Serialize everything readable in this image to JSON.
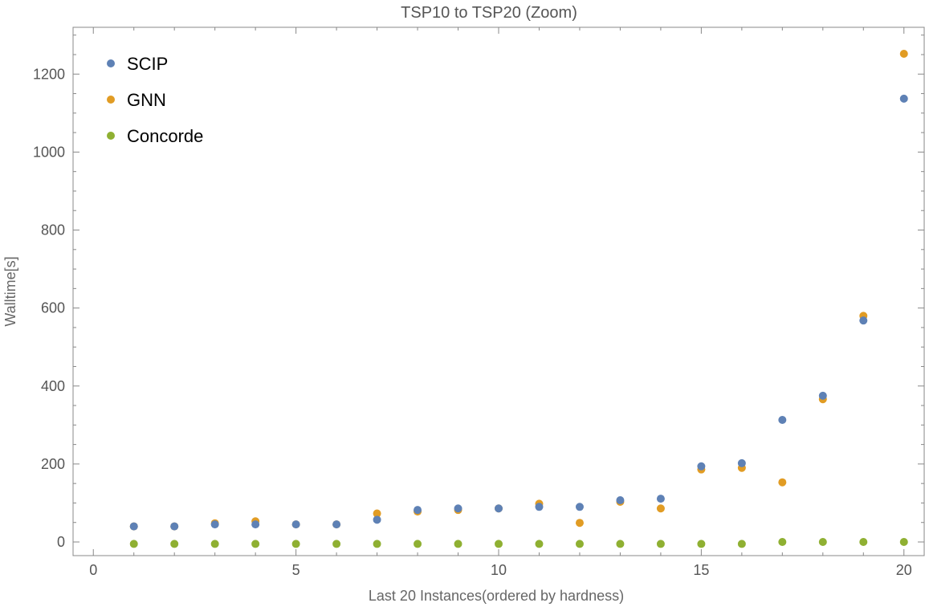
{
  "chart_data": {
    "type": "scatter",
    "title": "TSP10 to TSP20 (Zoom)",
    "xlabel": "Last 20 Instances(ordered by hardness)",
    "ylabel": "Walltime[s]",
    "xlim": [
      -0.5,
      20.5
    ],
    "ylim": [
      -35,
      1320
    ],
    "x_major_ticks": [
      0,
      5,
      10,
      15,
      20
    ],
    "x_tick_labels": [
      "0",
      "5",
      "10",
      "15",
      "20"
    ],
    "y_major_ticks": [
      0,
      200,
      400,
      600,
      800,
      1000,
      1200
    ],
    "y_tick_labels": [
      "0",
      "200",
      "400",
      "600",
      "800",
      "1000",
      "1200"
    ],
    "grid": false,
    "legend_position": "top-left",
    "x": [
      1,
      2,
      3,
      4,
      5,
      6,
      7,
      8,
      9,
      10,
      11,
      12,
      13,
      14,
      15,
      16,
      17,
      18,
      19,
      20
    ],
    "series": [
      {
        "name": "SCIP",
        "color": "#5e81b5",
        "values": [
          40,
          40,
          45,
          45,
          45,
          45,
          57,
          82,
          86,
          86,
          90,
          90,
          107,
          111,
          194,
          202,
          313,
          375,
          568,
          1137
        ]
      },
      {
        "name": "GNN",
        "color": "#e19c24",
        "values": [
          40,
          40,
          48,
          53,
          45,
          45,
          73,
          78,
          82,
          86,
          98,
          49,
          103,
          86,
          186,
          190,
          153,
          366,
          580,
          1252
        ]
      },
      {
        "name": "Concorde",
        "color": "#8fb032",
        "values": [
          -5,
          -5,
          -5,
          -5,
          -5,
          -5,
          -5,
          -5,
          -5,
          -5,
          -5,
          -5,
          -5,
          -5,
          -5,
          -5,
          0,
          0,
          0,
          0
        ]
      }
    ]
  }
}
